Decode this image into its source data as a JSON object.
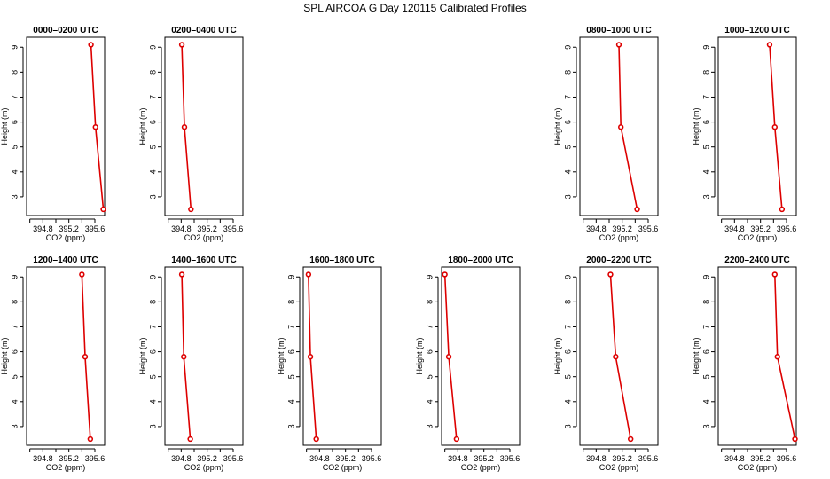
{
  "chart_data": {
    "type": "line",
    "title": "SPL AIRCOA G  Day 120115  Calibrated Profiles",
    "xlabel": "CO2 (ppm)",
    "ylabel": "Height (m)",
    "xlim": [
      394.55,
      395.75
    ],
    "ylim": [
      2.25,
      9.4
    ],
    "xticks": [
      "394.8",
      "395.2",
      "395.6"
    ],
    "xtick_values": [
      394.8,
      395.2,
      395.6
    ],
    "xminor": [
      394.6,
      395.0,
      395.4
    ],
    "yticks": [
      3,
      4,
      5,
      6,
      7,
      8,
      9
    ],
    "heights": [
      9.1,
      5.8,
      2.5
    ],
    "line_color": "#dd0000",
    "panels": [
      {
        "title": "0000–0200 UTC",
        "x": [
          395.54,
          395.61,
          395.73
        ]
      },
      {
        "title": "0200–0400 UTC",
        "x": [
          394.81,
          394.85,
          394.95
        ]
      },
      null,
      null,
      {
        "title": "0800–1000 UTC",
        "x": [
          395.15,
          395.18,
          395.43
        ]
      },
      {
        "title": "1000–1200 UTC",
        "x": [
          395.34,
          395.42,
          395.53
        ]
      },
      {
        "title": "1200–1400 UTC",
        "x": [
          395.4,
          395.45,
          395.53
        ]
      },
      {
        "title": "1400–1600 UTC",
        "x": [
          394.81,
          394.84,
          394.94
        ]
      },
      {
        "title": "1600–1800 UTC",
        "x": [
          394.63,
          394.66,
          394.75
        ]
      },
      {
        "title": "1800–2000 UTC",
        "x": [
          394.6,
          394.66,
          394.78
        ]
      },
      {
        "title": "2000–2200 UTC",
        "x": [
          395.02,
          395.1,
          395.33
        ]
      },
      {
        "title": "2200–2400 UTC",
        "x": [
          395.42,
          395.46,
          395.73
        ]
      }
    ]
  }
}
